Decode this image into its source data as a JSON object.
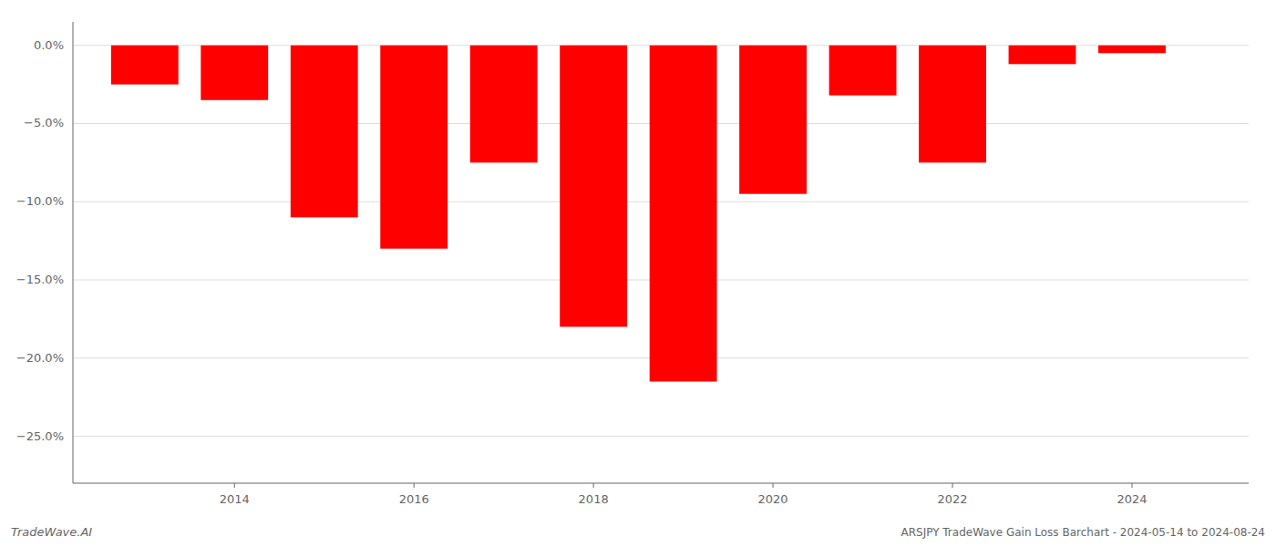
{
  "chart_data": {
    "type": "bar",
    "x": [
      2013,
      2014,
      2015,
      2016,
      2017,
      2018,
      2019,
      2020,
      2021,
      2022,
      2023,
      2024
    ],
    "values": [
      -2.5,
      -3.5,
      -11.0,
      -13.0,
      -7.5,
      -18.0,
      -21.5,
      -9.5,
      -3.2,
      -7.5,
      -1.2,
      -0.5
    ],
    "color": "#ff0000",
    "xlim": [
      2012.2,
      2025.3
    ],
    "xticks": [
      2014,
      2016,
      2018,
      2020,
      2022,
      2024
    ],
    "ylim": [
      -28,
      1.5
    ],
    "yticks": [
      {
        "value": 0.0,
        "label": "0.0%"
      },
      {
        "value": -5.0,
        "label": "−5.0%"
      },
      {
        "value": -10.0,
        "label": "−10.0%"
      },
      {
        "value": -15.0,
        "label": "−15.0%"
      },
      {
        "value": -20.0,
        "label": "−20.0%"
      },
      {
        "value": -25.0,
        "label": "−25.0%"
      }
    ],
    "grid": true,
    "annotations": [
      "TradeWave.AI",
      "ARSJPY TradeWave Gain Loss Barchart - 2024-05-14 to 2024-08-24"
    ]
  }
}
